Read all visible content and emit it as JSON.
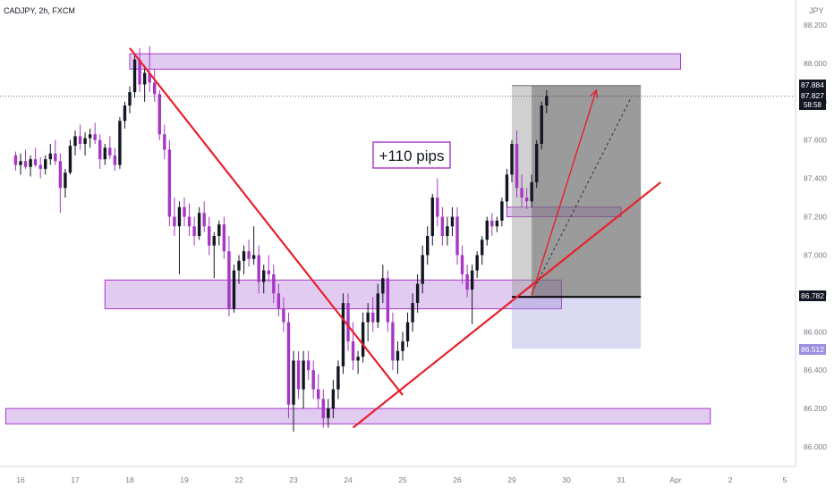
{
  "header": {
    "symbol_label": "CADJPY, 2h, FXCM"
  },
  "annotation": {
    "pips_label": "+110 pips"
  },
  "currency_label": "JPY",
  "price_labels": {
    "current": {
      "value": "87.884",
      "price": 87.884
    },
    "last": {
      "value": "87.827",
      "price": 87.827
    },
    "countdown": "58:58",
    "stop": {
      "value": "86.782",
      "price": 86.782
    },
    "target_entry": {
      "value": "86.512",
      "price": 86.512
    }
  },
  "colors": {
    "bull": "#131722",
    "bear": "#a637c4",
    "zone_fill": "rgba(190,140,225,0.45)",
    "zone_stroke": "#a637c4",
    "trend": "#e8202a",
    "target_box": "rgba(120,120,120,0.55)",
    "stop_box": "rgba(150,150,220,0.35)"
  },
  "chart_data": {
    "type": "candlestick",
    "title": "",
    "xlabel": "",
    "ylabel": "",
    "ylim": [
      85.92,
      88.36
    ],
    "y_ticks": [
      "88.200",
      "88.000",
      "87.800",
      "87.600",
      "87.400",
      "87.200",
      "87.000",
      "86.800",
      "86.600",
      "86.400",
      "86.200",
      "86.000"
    ],
    "y_tick_values": [
      88.2,
      88.0,
      87.8,
      87.6,
      87.4,
      87.2,
      87.0,
      86.8,
      86.6,
      86.4,
      86.2,
      86.0
    ],
    "x_ticks": [
      "16",
      "17",
      "18",
      "19",
      "22",
      "23",
      "24",
      "25",
      "26",
      "29",
      "30",
      "31",
      "Apr",
      "2",
      "5"
    ],
    "x_tick_index": [
      -15,
      -4,
      7,
      18,
      29,
      40,
      51,
      62,
      73,
      84,
      95,
      106,
      117,
      128,
      139
    ],
    "candles_start_index": -16,
    "candles": [
      [
        87.52,
        87.54,
        87.44,
        87.47
      ],
      [
        87.47,
        87.53,
        87.42,
        87.49
      ],
      [
        87.49,
        87.55,
        87.45,
        87.46
      ],
      [
        87.46,
        87.52,
        87.41,
        87.5
      ],
      [
        87.5,
        87.56,
        87.46,
        87.47
      ],
      [
        87.47,
        87.51,
        87.4,
        87.45
      ],
      [
        87.45,
        87.52,
        87.42,
        87.5
      ],
      [
        87.5,
        87.58,
        87.47,
        87.53
      ],
      [
        87.53,
        87.6,
        87.47,
        87.49
      ],
      [
        87.49,
        87.53,
        87.22,
        87.35
      ],
      [
        87.35,
        87.45,
        87.3,
        87.43
      ],
      [
        87.43,
        87.6,
        87.42,
        87.57
      ],
      [
        87.57,
        87.65,
        87.52,
        87.62
      ],
      [
        87.62,
        87.68,
        87.55,
        87.58
      ],
      [
        87.58,
        87.64,
        87.52,
        87.61
      ],
      [
        87.61,
        87.66,
        87.56,
        87.63
      ],
      [
        87.63,
        87.69,
        87.58,
        87.6
      ],
      [
        87.6,
        87.63,
        87.45,
        87.5
      ],
      [
        87.5,
        87.58,
        87.47,
        87.56
      ],
      [
        87.56,
        87.62,
        87.5,
        87.52
      ],
      [
        87.52,
        87.56,
        87.44,
        87.47
      ],
      [
        87.47,
        87.72,
        87.45,
        87.7
      ],
      [
        87.7,
        87.8,
        87.66,
        87.78
      ],
      [
        87.78,
        87.88,
        87.74,
        87.85
      ],
      [
        87.85,
        88.05,
        87.82,
        88.02
      ],
      [
        88.02,
        88.08,
        87.85,
        87.89
      ],
      [
        87.89,
        87.98,
        87.8,
        87.95
      ],
      [
        87.95,
        88.09,
        87.85,
        87.9
      ],
      [
        87.9,
        87.97,
        87.8,
        87.84
      ],
      [
        87.84,
        87.86,
        87.6,
        87.63
      ],
      [
        87.63,
        87.68,
        87.5,
        87.55
      ],
      [
        87.55,
        87.6,
        87.15,
        87.2
      ],
      [
        87.2,
        87.3,
        87.1,
        87.15
      ],
      [
        87.15,
        87.28,
        86.9,
        87.25
      ],
      [
        87.25,
        87.3,
        87.15,
        87.2
      ],
      [
        87.2,
        87.27,
        87.1,
        87.15
      ],
      [
        87.15,
        87.2,
        87.05,
        87.1
      ],
      [
        87.1,
        87.25,
        87.08,
        87.22
      ],
      [
        87.22,
        87.28,
        87.12,
        87.15
      ],
      [
        87.15,
        87.2,
        87.0,
        87.05
      ],
      [
        87.05,
        87.12,
        86.88,
        87.1
      ],
      [
        87.1,
        87.18,
        87.05,
        87.16
      ],
      [
        87.16,
        87.2,
        86.98,
        87.02
      ],
      [
        87.02,
        87.1,
        86.68,
        86.72
      ],
      [
        86.72,
        86.95,
        86.7,
        86.92
      ],
      [
        86.92,
        87.0,
        86.85,
        86.97
      ],
      [
        86.97,
        87.05,
        86.9,
        87.02
      ],
      [
        87.02,
        87.08,
        86.94,
        86.98
      ],
      [
        86.98,
        87.15,
        86.95,
        87.0
      ],
      [
        87.0,
        87.05,
        86.8,
        86.86
      ],
      [
        86.86,
        86.95,
        86.8,
        86.92
      ],
      [
        86.92,
        87.0,
        86.86,
        86.9
      ],
      [
        86.9,
        86.95,
        86.75,
        86.8
      ],
      [
        86.8,
        86.85,
        86.68,
        86.72
      ],
      [
        86.72,
        86.78,
        86.6,
        86.65
      ],
      [
        86.65,
        86.7,
        86.15,
        86.22
      ],
      [
        86.22,
        86.5,
        86.08,
        86.45
      ],
      [
        86.45,
        86.5,
        86.25,
        86.3
      ],
      [
        86.3,
        86.5,
        86.2,
        86.45
      ],
      [
        86.45,
        86.5,
        86.35,
        86.4
      ],
      [
        86.4,
        86.45,
        86.25,
        86.3
      ],
      [
        86.3,
        86.38,
        86.2,
        86.25
      ],
      [
        86.25,
        86.3,
        86.1,
        86.15
      ],
      [
        86.15,
        86.25,
        86.1,
        86.2
      ],
      [
        86.2,
        86.35,
        86.15,
        86.3
      ],
      [
        86.3,
        86.45,
        86.25,
        86.42
      ],
      [
        86.42,
        86.8,
        86.38,
        86.75
      ],
      [
        86.75,
        86.8,
        86.5,
        86.55
      ],
      [
        86.55,
        86.65,
        86.4,
        86.45
      ],
      [
        86.45,
        86.5,
        86.38,
        86.47
      ],
      [
        86.47,
        86.7,
        86.44,
        86.65
      ],
      [
        86.65,
        86.75,
        86.55,
        86.7
      ],
      [
        86.7,
        86.78,
        86.6,
        86.65
      ],
      [
        86.65,
        86.85,
        86.62,
        86.8
      ],
      [
        86.8,
        86.95,
        86.75,
        86.88
      ],
      [
        86.88,
        86.92,
        86.6,
        86.65
      ],
      [
        86.65,
        86.7,
        86.4,
        86.45
      ],
      [
        86.45,
        86.55,
        86.38,
        86.5
      ],
      [
        86.5,
        86.6,
        86.45,
        86.55
      ],
      [
        86.55,
        86.7,
        86.52,
        86.65
      ],
      [
        86.65,
        86.8,
        86.6,
        86.75
      ],
      [
        86.75,
        86.9,
        86.7,
        86.85
      ],
      [
        86.85,
        87.05,
        86.8,
        87.0
      ],
      [
        87.0,
        87.15,
        86.95,
        87.1
      ],
      [
        87.1,
        87.32,
        87.05,
        87.3
      ],
      [
        87.3,
        87.4,
        87.15,
        87.2
      ],
      [
        87.2,
        87.25,
        87.05,
        87.1
      ],
      [
        87.1,
        87.2,
        87.05,
        87.15
      ],
      [
        87.15,
        87.25,
        87.1,
        87.2
      ],
      [
        87.2,
        87.25,
        86.95,
        87.0
      ],
      [
        87.0,
        87.05,
        86.85,
        86.9
      ],
      [
        86.9,
        86.95,
        86.78,
        86.82
      ],
      [
        86.82,
        86.95,
        86.64,
        86.92
      ],
      [
        86.92,
        87.02,
        86.88,
        87.0
      ],
      [
        87.0,
        87.1,
        86.95,
        87.08
      ],
      [
        87.08,
        87.2,
        87.05,
        87.18
      ],
      [
        87.18,
        87.22,
        87.1,
        87.15
      ],
      [
        87.15,
        87.2,
        87.12,
        87.18
      ],
      [
        87.18,
        87.3,
        87.15,
        87.28
      ],
      [
        87.28,
        87.45,
        87.25,
        87.42
      ],
      [
        87.42,
        87.6,
        87.38,
        87.58
      ],
      [
        87.58,
        87.65,
        87.3,
        87.35
      ],
      [
        87.35,
        87.42,
        87.25,
        87.3
      ],
      [
        87.3,
        87.35,
        87.24,
        87.28
      ],
      [
        87.28,
        87.42,
        87.25,
        87.38
      ],
      [
        87.38,
        87.6,
        87.35,
        87.58
      ],
      [
        87.58,
        87.8,
        87.55,
        87.78
      ],
      [
        87.78,
        87.86,
        87.74,
        87.83
      ]
    ],
    "zones": [
      {
        "x0": 7,
        "x1": 118,
        "y0": 87.97,
        "y1": 88.05
      },
      {
        "x0": 2,
        "x1": 94,
        "y0": 86.72,
        "y1": 86.87
      },
      {
        "x0": 83,
        "x1": 106,
        "y0": 87.2,
        "y1": 87.25
      },
      {
        "x0": -18,
        "x1": 124,
        "y0": 86.12,
        "y1": 86.2
      }
    ],
    "trend_lines": [
      {
        "x0": 7,
        "y0": 88.08,
        "x1": 62,
        "y1": 86.27
      },
      {
        "x0": 52,
        "y0": 86.1,
        "x1": 114,
        "y1": 87.38
      }
    ],
    "position": {
      "x0": 84,
      "x1": 110,
      "entry": 86.782,
      "target": 87.884,
      "stop": 86.512,
      "inner_x0": 88,
      "arrow_from": [
        88,
        86.79
      ],
      "arrow_to": [
        101,
        87.86
      ],
      "dotted_from": [
        88,
        86.8
      ],
      "dotted_to": [
        108,
        87.82
      ]
    }
  }
}
